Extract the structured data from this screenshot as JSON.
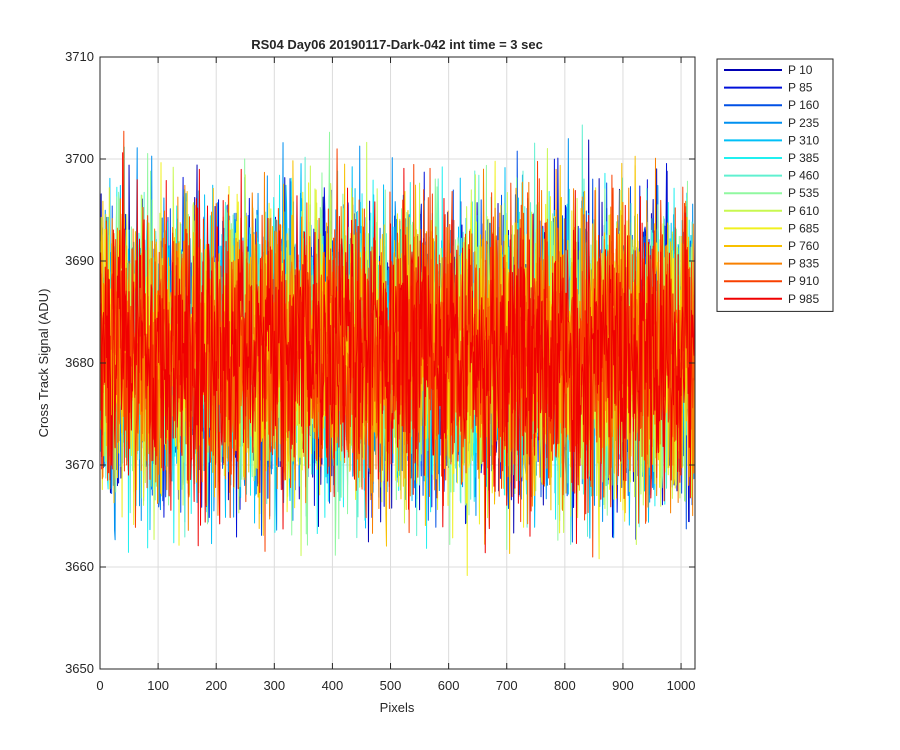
{
  "chart_data": {
    "type": "line",
    "title": "RS04 Day06 20190117-Dark-042 int time = 3 sec",
    "xlabel": "Pixels",
    "ylabel": "Cross Track Signal (ADU)",
    "xlim": [
      0,
      1024
    ],
    "ylim": [
      3650,
      3710
    ],
    "xticks": [
      "0",
      "100",
      "200",
      "300",
      "400",
      "500",
      "600",
      "700",
      "800",
      "900",
      "1000"
    ],
    "yticks": [
      "3650",
      "3660",
      "3670",
      "3680",
      "3690",
      "3700",
      "3710"
    ],
    "grid": true,
    "legend_position": "outside-right-top",
    "series_summary": {
      "points_per_series": 1024,
      "x_start": 1,
      "x_end": 1024,
      "mean_approx": 3681,
      "std_approx": 7,
      "min_approx": 3652,
      "max_approx": 3710
    },
    "series": [
      {
        "name": "P 10",
        "color": "#0000b3",
        "seed": 10
      },
      {
        "name": "P 85",
        "color": "#0010d9",
        "seed": 85
      },
      {
        "name": "P 160",
        "color": "#0050e6",
        "seed": 160
      },
      {
        "name": "P 235",
        "color": "#0090f0",
        "seed": 235
      },
      {
        "name": "P 310",
        "color": "#00c0f8",
        "seed": 310
      },
      {
        "name": "P 385",
        "color": "#20f0f0",
        "seed": 385
      },
      {
        "name": "P 460",
        "color": "#60f0d0",
        "seed": 460
      },
      {
        "name": "P 535",
        "color": "#90f8a0",
        "seed": 535
      },
      {
        "name": "P 610",
        "color": "#c8f850",
        "seed": 610
      },
      {
        "name": "P 685",
        "color": "#f0f020",
        "seed": 685
      },
      {
        "name": "P 760",
        "color": "#f8c000",
        "seed": 760
      },
      {
        "name": "P 835",
        "color": "#f88000",
        "seed": 835
      },
      {
        "name": "P 910",
        "color": "#f84000",
        "seed": 910
      },
      {
        "name": "P 985",
        "color": "#f00000",
        "seed": 985
      }
    ]
  }
}
